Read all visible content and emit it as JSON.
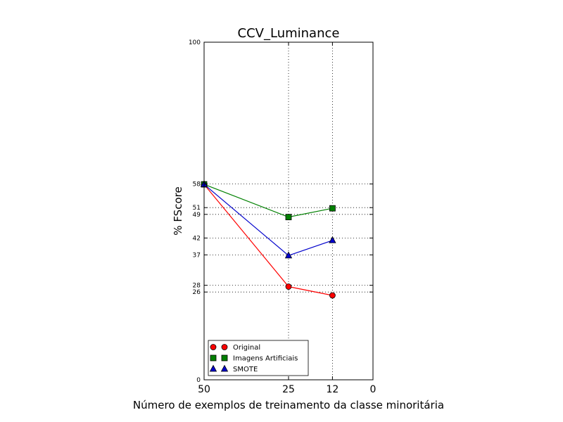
{
  "chart_data": {
    "type": "line",
    "title": "CCV_Luminance",
    "xlabel": "Número de exemplos de treinamento da classe minoritária",
    "ylabel": "% FScore",
    "xlim": [
      50,
      0
    ],
    "ylim": [
      0,
      100
    ],
    "x_reversed": true,
    "x_ticks": [
      50,
      25,
      12,
      0
    ],
    "y_ticks": [
      0,
      26,
      28,
      37,
      42,
      49,
      51,
      58,
      100
    ],
    "grid": true,
    "legend_position": "lower-left",
    "series": [
      {
        "name": "Original",
        "color": "#ff0000",
        "marker": "circle",
        "x": [
          50,
          25,
          12
        ],
        "y": [
          57.9,
          27.6,
          25.0
        ]
      },
      {
        "name": "Imagens Artificiais",
        "color": "#008000",
        "marker": "square",
        "x": [
          50,
          25,
          12
        ],
        "y": [
          57.9,
          48.2,
          50.8
        ]
      },
      {
        "name": "SMOTE",
        "color": "#0000cc",
        "marker": "triangle",
        "x": [
          50,
          25,
          12
        ],
        "y": [
          57.9,
          36.8,
          41.3
        ]
      }
    ]
  }
}
